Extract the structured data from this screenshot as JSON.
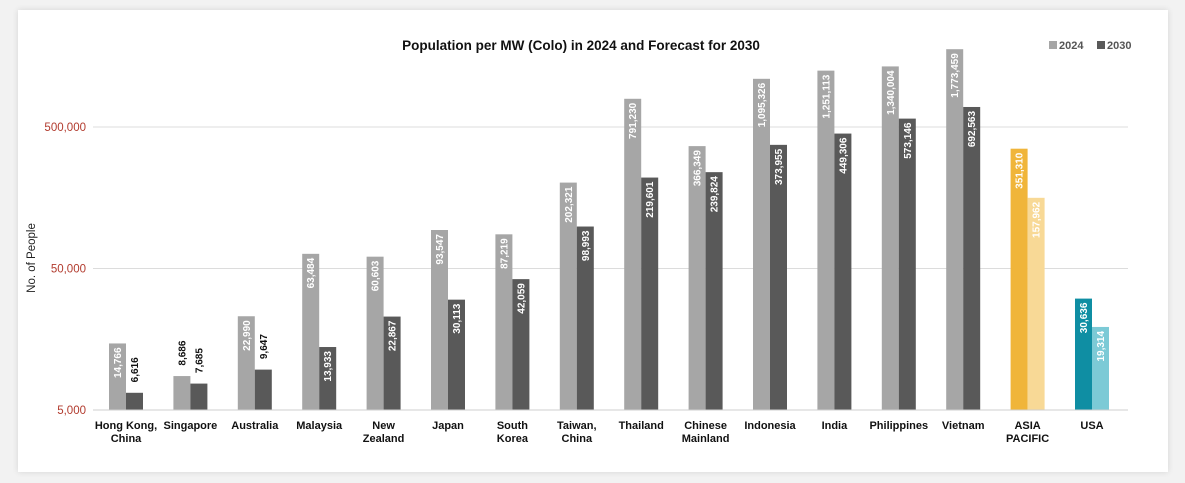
{
  "chart_data": {
    "type": "bar",
    "title": "Population per MW (Colo) in 2024 and Forecast for 2030",
    "ylabel": "No. of People",
    "yscale": "log",
    "ylim": [
      5000,
      1800000
    ],
    "yticks": [
      5000,
      50000,
      500000
    ],
    "ytick_labels": [
      "5,000",
      "50,000",
      "500,000"
    ],
    "grid": true,
    "legend_position": "top-right",
    "categories": [
      "Hong Kong, China",
      "Singapore",
      "Australia",
      "Malaysia",
      "New Zealand",
      "Japan",
      "South Korea",
      "Taiwan, China",
      "Thailand",
      "Chinese Mainland",
      "Indonesia",
      "India",
      "Philippines",
      "Vietnam",
      "ASIA PACIFIC",
      "USA"
    ],
    "category_lines": [
      [
        "Hong Kong,",
        "China"
      ],
      [
        "Singapore"
      ],
      [
        "Australia"
      ],
      [
        "Malaysia"
      ],
      [
        "New",
        "Zealand"
      ],
      [
        "Japan"
      ],
      [
        "South",
        "Korea"
      ],
      [
        "Taiwan,",
        "China"
      ],
      [
        "Thailand"
      ],
      [
        "Chinese",
        "Mainland"
      ],
      [
        "Indonesia"
      ],
      [
        "India"
      ],
      [
        "Philippines"
      ],
      [
        "Vietnam"
      ],
      [
        "ASIA",
        "PACIFIC"
      ],
      [
        "USA"
      ]
    ],
    "series": [
      {
        "name": "2024",
        "color": "#a6a6a6",
        "values": [
          14766,
          8686,
          22990,
          63484,
          60603,
          93547,
          87219,
          202321,
          791230,
          366349,
          1095326,
          1251113,
          1340004,
          1773459,
          351310,
          30636
        ],
        "labels": [
          "14,766",
          "8,686",
          "22,990",
          "63,484",
          "60,603",
          "93,547",
          "87,219",
          "202,321",
          "791,230",
          "366,349",
          "1,095,326",
          "1,251,113",
          "1,340,004",
          "1,773,459",
          "351,310",
          "30,636"
        ]
      },
      {
        "name": "2030",
        "color": "#595959",
        "values": [
          6616,
          7685,
          9647,
          13933,
          22867,
          30113,
          42059,
          98993,
          219601,
          239824,
          373955,
          449306,
          573146,
          692563,
          157962,
          19314
        ],
        "labels": [
          "6,616",
          "7,685",
          "9,647",
          "13,933",
          "22,867",
          "30,113",
          "42,059",
          "98,993",
          "219,601",
          "239,824",
          "373,955",
          "449,306",
          "573,146",
          "692,563",
          "157,962",
          "19,314"
        ]
      }
    ],
    "highlight_colors": {
      "ASIA PACIFIC": [
        "#f0b53a",
        "#f8d996"
      ],
      "USA": [
        "#0f8ea3",
        "#7ccad6"
      ]
    }
  }
}
